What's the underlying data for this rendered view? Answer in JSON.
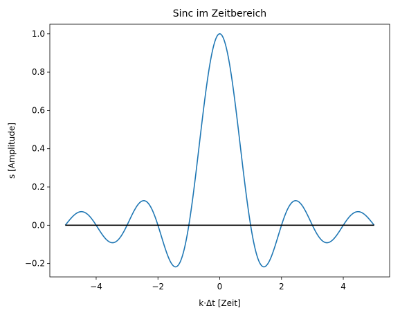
{
  "chart_data": {
    "type": "line",
    "title": "Sinc im Zeitbereich",
    "xlabel": "k·Δt [Zeit]",
    "ylabel": "s [Amplitude]",
    "xlim": [
      -5.5,
      5.5
    ],
    "ylim": [
      -0.27,
      1.05
    ],
    "xticks": [
      -4,
      -2,
      0,
      2,
      4
    ],
    "xtick_labels": [
      "−4",
      "−2",
      "0",
      "2",
      "4"
    ],
    "yticks": [
      -0.2,
      0.0,
      0.2,
      0.4,
      0.6,
      0.8,
      1.0
    ],
    "ytick_labels": [
      "−0.2",
      "0.0",
      "0.2",
      "0.4",
      "0.6",
      "0.8",
      "1.0"
    ],
    "grid": false,
    "series": [
      {
        "function": "sinc(x) = sin(πx)/(πx)",
        "x_range": [
          -5,
          5
        ],
        "color": "#1f77b4"
      },
      {
        "x": [
          -5,
          5
        ],
        "y": [
          0,
          0
        ],
        "color": "#000000"
      }
    ]
  }
}
